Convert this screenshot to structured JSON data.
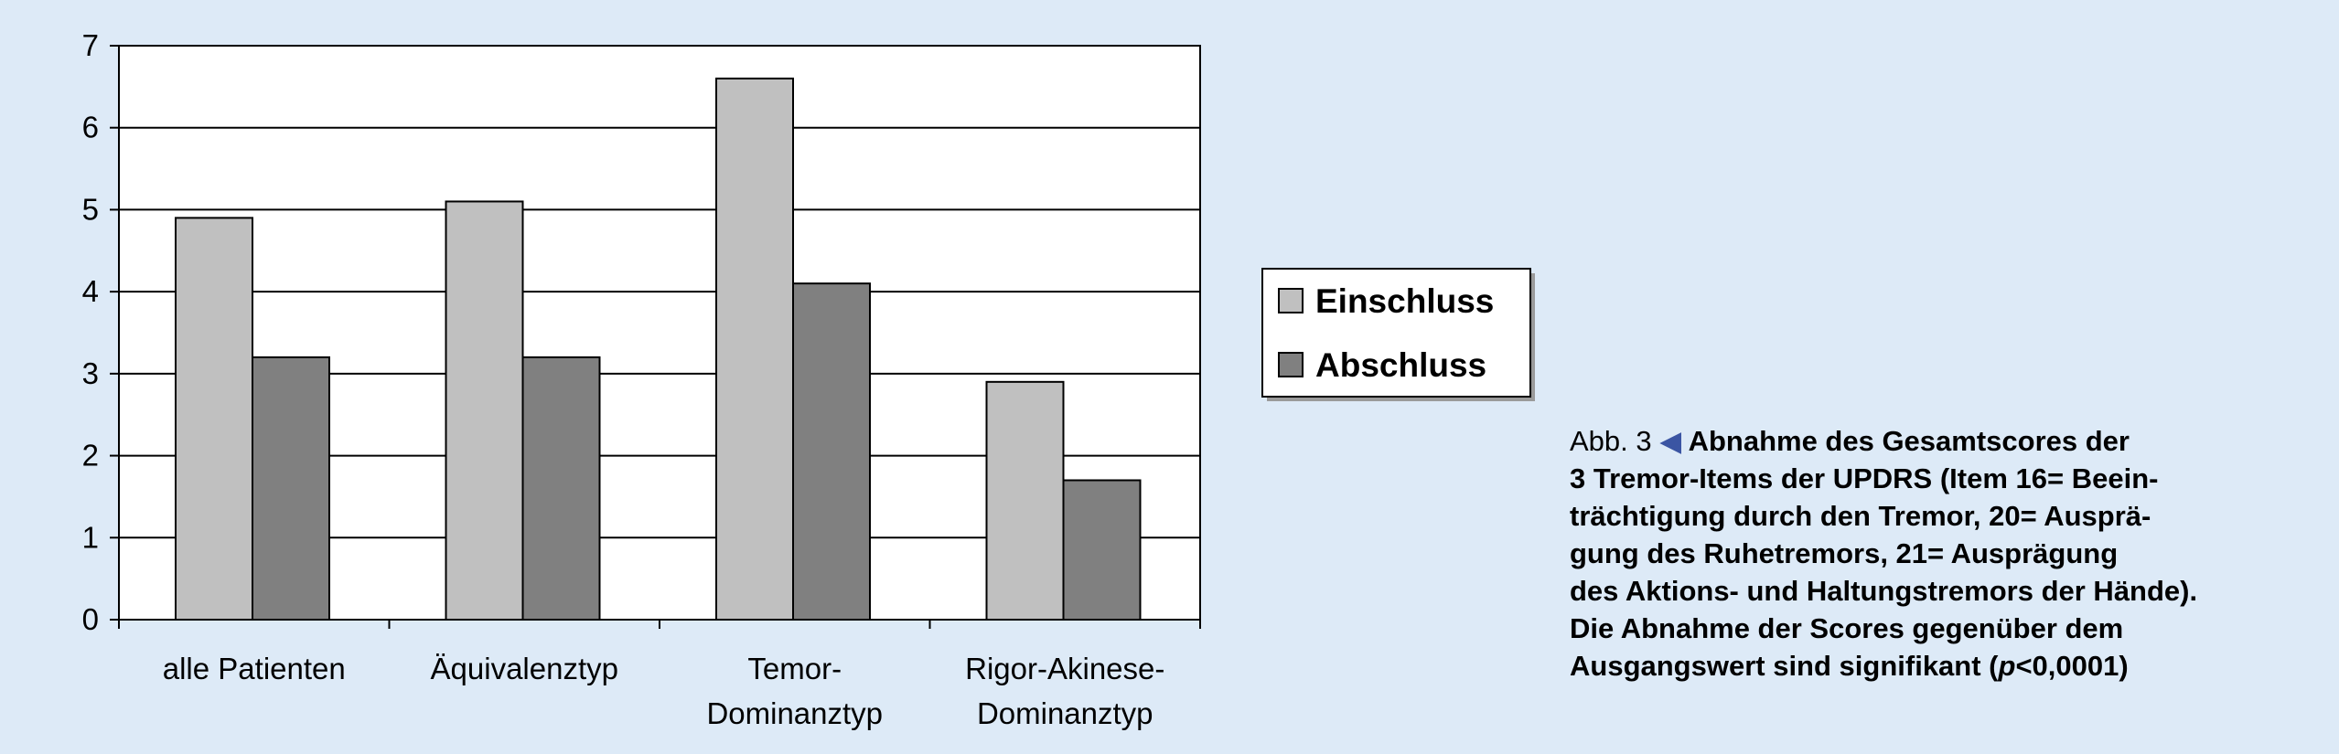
{
  "chart_data": {
    "type": "bar",
    "categories": [
      [
        "alle Patienten"
      ],
      [
        "Äquivalenztyp"
      ],
      [
        "Temor-",
        "Dominanztyp"
      ],
      [
        "Rigor-Akinese-",
        "Dominanztyp"
      ]
    ],
    "series": [
      {
        "name": "Einschluss",
        "values": [
          4.9,
          5.1,
          6.6,
          2.9
        ],
        "color": "#c0c0c0"
      },
      {
        "name": "Abschluss",
        "values": [
          3.2,
          3.2,
          4.1,
          1.7
        ],
        "color": "#808080"
      }
    ],
    "yticks": [
      "0",
      "1",
      "2",
      "3",
      "4",
      "5",
      "6",
      "7"
    ],
    "ylim": [
      0,
      7
    ],
    "grid": true,
    "legend_position": "right",
    "xlabel": "",
    "ylabel": "",
    "title": ""
  },
  "caption": {
    "fig_label": "Abb. 3",
    "arrow": "◀",
    "line1": "Abnahme des Gesamtscores der",
    "line2": "3 Tremor-Items der UPDRS (Item 16= Beein-",
    "line3": "trächtigung durch den Tremor, 20= Ausprä-",
    "line4": "gung des Ruhetremors, 21= Ausprägung",
    "line5": "des Aktions- und Haltungstremors der Hände).",
    "line6": "Die Abnahme der Scores gegenüber dem",
    "line7_a": "Ausgangswert sind signifikant (",
    "line7_p": "p",
    "line7_b": "<0,0001)"
  }
}
